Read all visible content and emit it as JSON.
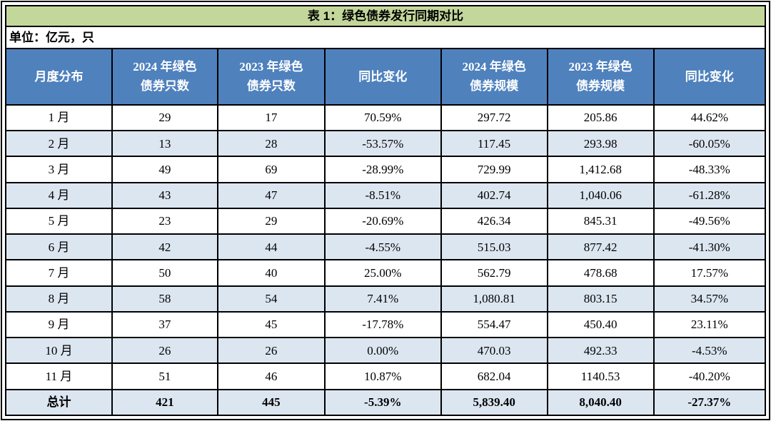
{
  "colors": {
    "title_bg": "#c4d79b",
    "header_bg": "#4f81bd",
    "header_text": "#ffffff",
    "stripe_bg": "#dce6f1",
    "border": "#000000"
  },
  "table": {
    "title": "表 1：绿色债券发行同期对比",
    "unit_note": "单位：亿元，只",
    "columns": [
      "月度分布",
      "2024 年绿色\n债券只数",
      "2023 年绿色\n债券只数",
      "同比变化",
      "2024 年绿色\n债券规模",
      "2023 年绿色\n债券规模",
      "同比变化"
    ],
    "rows": [
      [
        "1 月",
        "29",
        "17",
        "70.59%",
        "297.72",
        "205.86",
        "44.62%"
      ],
      [
        "2 月",
        "13",
        "28",
        "-53.57%",
        "117.45",
        "293.98",
        "-60.05%"
      ],
      [
        "3 月",
        "49",
        "69",
        "-28.99%",
        "729.99",
        "1,412.68",
        "-48.33%"
      ],
      [
        "4 月",
        "43",
        "47",
        "-8.51%",
        "402.74",
        "1,040.06",
        "-61.28%"
      ],
      [
        "5 月",
        "23",
        "29",
        "-20.69%",
        "426.34",
        "845.31",
        "-49.56%"
      ],
      [
        "6 月",
        "42",
        "44",
        "-4.55%",
        "515.03",
        "877.42",
        "-41.30%"
      ],
      [
        "7 月",
        "50",
        "40",
        "25.00%",
        "562.79",
        "478.68",
        "17.57%"
      ],
      [
        "8 月",
        "58",
        "54",
        "7.41%",
        "1,080.81",
        "803.15",
        "34.57%"
      ],
      [
        "9 月",
        "37",
        "45",
        "-17.78%",
        "554.47",
        "450.40",
        "23.11%"
      ],
      [
        "10 月",
        "26",
        "26",
        "0.00%",
        "470.03",
        "492.33",
        "-4.53%"
      ],
      [
        "11 月",
        "51",
        "46",
        "10.87%",
        "682.04",
        "1140.53",
        "-40.20%"
      ]
    ],
    "total_row": [
      "总计",
      "421",
      "445",
      "-5.39%",
      "5,839.40",
      "8,040.40",
      "-27.37%"
    ]
  }
}
